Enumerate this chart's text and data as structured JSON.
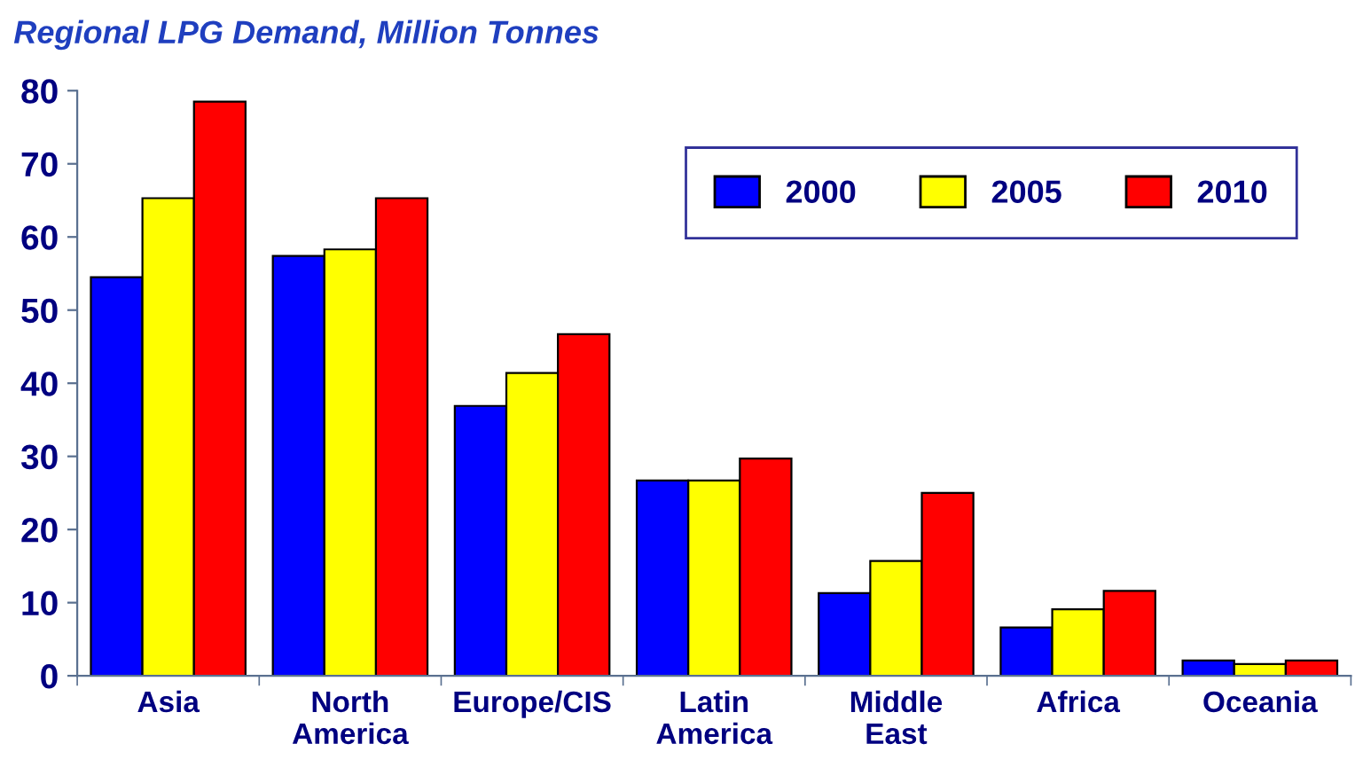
{
  "chart_data": {
    "type": "bar",
    "title": "Regional LPG Demand, Million Tonnes",
    "categories": [
      "Asia",
      "North\nAmerica",
      "Europe/CIS",
      "Latin\nAmerica",
      "Middle\nEast",
      "Africa",
      "Oceania"
    ],
    "series": [
      {
        "name": "2000",
        "color": "#0000ff",
        "values": [
          54.5,
          57.4,
          36.9,
          26.7,
          11.3,
          6.6,
          2.1
        ]
      },
      {
        "name": "2005",
        "color": "#ffff00",
        "values": [
          65.3,
          58.3,
          41.4,
          26.7,
          15.7,
          9.1,
          1.6
        ]
      },
      {
        "name": "2010",
        "color": "#ff0000",
        "values": [
          78.5,
          65.3,
          46.7,
          29.7,
          25.0,
          11.6,
          2.1
        ]
      }
    ],
    "ylim": [
      0,
      80
    ],
    "yticks": [
      0,
      10,
      20,
      30,
      40,
      50,
      60,
      70,
      80
    ],
    "grid": false,
    "legend": "top right"
  }
}
